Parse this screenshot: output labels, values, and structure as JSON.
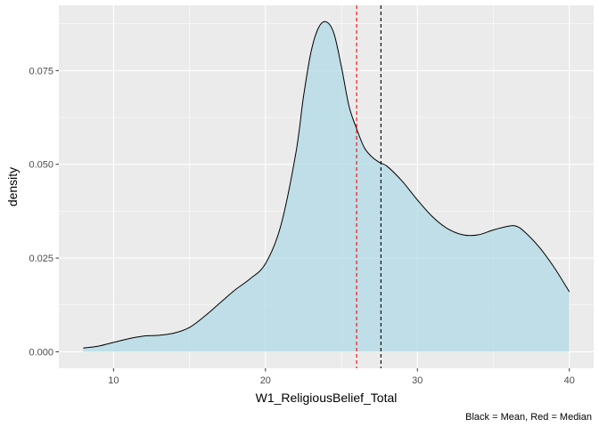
{
  "chart_data": {
    "type": "area",
    "xlabel": "W1_ReligiousBelief_Total",
    "ylabel": "density",
    "caption": "Black = Mean, Red = Median",
    "xlim": [
      6.4,
      41.6
    ],
    "ylim": [
      -0.0044,
      0.0924
    ],
    "x_ticks": [
      10,
      20,
      30,
      40
    ],
    "x_tick_labels": [
      "10",
      "20",
      "30",
      "40"
    ],
    "y_ticks": [
      0,
      0.025,
      0.05,
      0.075
    ],
    "y_tick_labels": [
      "0.000",
      "0.025",
      "0.050",
      "0.075"
    ],
    "grid": true,
    "fill_color": "#add8e6",
    "fill_opacity": 0.7,
    "line_color": "#000000",
    "panel_background": "#ebebeb",
    "grid_color": "#ffffff",
    "series": [
      {
        "x": [
          8,
          9,
          10,
          11,
          12,
          13,
          14,
          15,
          16,
          17,
          18,
          19,
          20,
          21,
          22,
          22.5,
          23,
          23.5,
          24,
          24.5,
          25,
          25.5,
          26,
          26.5,
          27,
          27.5,
          28,
          29,
          30,
          31,
          32,
          33,
          34,
          35,
          36,
          36.5,
          37,
          38,
          39,
          40
        ],
        "y": [
          0.001,
          0.0015,
          0.0025,
          0.0035,
          0.0042,
          0.0044,
          0.005,
          0.0065,
          0.0095,
          0.013,
          0.0165,
          0.0195,
          0.0235,
          0.0335,
          0.053,
          0.068,
          0.08,
          0.0865,
          0.088,
          0.085,
          0.076,
          0.0655,
          0.0595,
          0.0545,
          0.052,
          0.0505,
          0.0495,
          0.0455,
          0.0405,
          0.036,
          0.0328,
          0.0312,
          0.0312,
          0.0325,
          0.0335,
          0.0335,
          0.0322,
          0.028,
          0.0225,
          0.016
        ]
      }
    ],
    "vlines": [
      {
        "x": 27.6,
        "color": "#000000",
        "label": "Mean"
      },
      {
        "x": 26,
        "color": "#ff0000",
        "label": "Median"
      }
    ]
  }
}
